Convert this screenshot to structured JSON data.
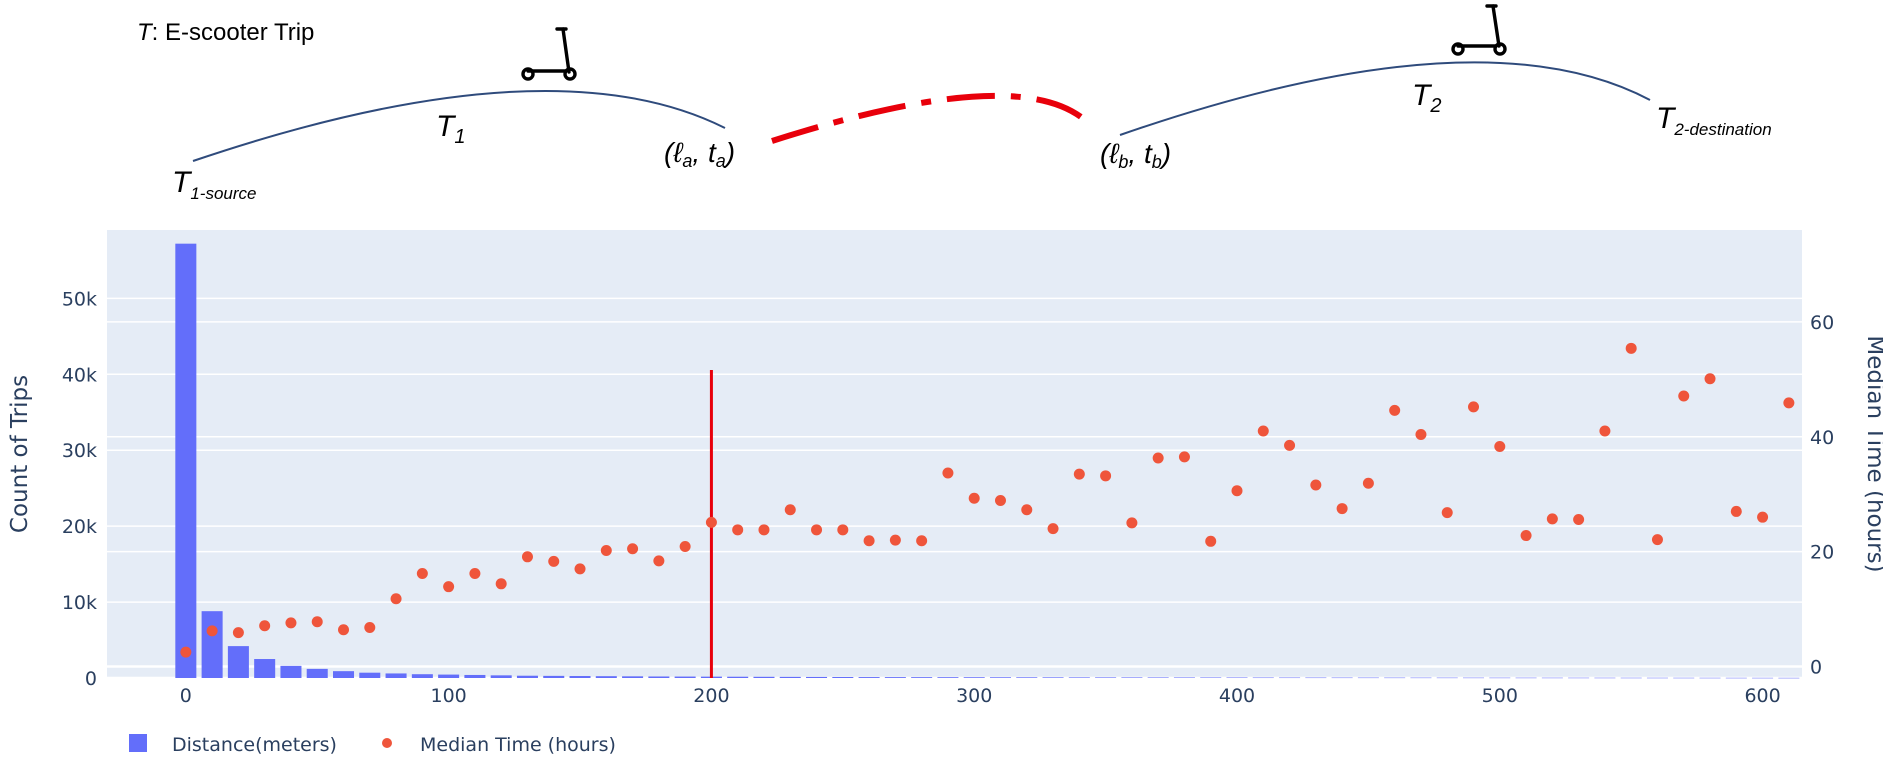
{
  "diagram": {
    "title_var": "T",
    "title_text": ": E-scooter Trip",
    "t1": {
      "main": "T",
      "sub": "1"
    },
    "t1_source": {
      "main": "T",
      "sub": "1-source"
    },
    "t2": {
      "main": "T",
      "sub": "2"
    },
    "t2_dest": {
      "main": "T",
      "sub": "2-destination"
    },
    "point_a": {
      "open": "(",
      "l": "ℓ",
      "l_sub": "a",
      "sep": ", ",
      "t": "t",
      "t_sub": "a",
      "close": ")"
    },
    "point_b": {
      "open": "(",
      "l": "ℓ",
      "l_sub": "b",
      "sep": ", ",
      "t": "t",
      "t_sub": "b",
      "close": ")"
    }
  },
  "colors": {
    "plot_bg": "#e5ecf6",
    "bar": "#636efa",
    "dot": "#ef553b",
    "vline": "#e8000b",
    "dashed": "#e8000b",
    "curve": "#2f4b7c",
    "axis_text": "#2a3f5f"
  },
  "chart_data": {
    "type": "bar+scatter",
    "xlabel": "",
    "ylabel_left": "Count of Trips",
    "ylabel_right": "Median Time (hours)",
    "x_ticks": [
      0,
      100,
      200,
      300,
      400,
      500,
      600
    ],
    "y_left_ticks": [
      0,
      10000,
      20000,
      30000,
      40000,
      50000
    ],
    "y_left_tick_labels": [
      "0",
      "10k",
      "20k",
      "30k",
      "40k",
      "50k"
    ],
    "y_right_ticks": [
      0,
      20,
      40,
      60
    ],
    "y_right_tick_labels": [
      "0",
      "20",
      "40",
      "60"
    ],
    "xlim": [
      -30,
      615
    ],
    "ylim_left": [
      0,
      59000
    ],
    "ylim_right": [
      -2,
      76
    ],
    "vline_x": 200,
    "bars": {
      "name": "Distance(meters)",
      "x": [
        0,
        10,
        20,
        30,
        40,
        50,
        60,
        70,
        80,
        90,
        100,
        110,
        120,
        130,
        140,
        150,
        160,
        170,
        180,
        190,
        200,
        210,
        220,
        230,
        240,
        250,
        260,
        270,
        280,
        290,
        300,
        310,
        320,
        330,
        340,
        350,
        360,
        370,
        380,
        390,
        400,
        410,
        420,
        430,
        440,
        450,
        460,
        470,
        480,
        490,
        500,
        510,
        520,
        530,
        540,
        550,
        560,
        570,
        580,
        590,
        600,
        610
      ],
      "values": [
        57200,
        8800,
        4200,
        2500,
        1600,
        1200,
        900,
        700,
        600,
        500,
        450,
        400,
        350,
        300,
        280,
        260,
        240,
        220,
        200,
        190,
        180,
        170,
        160,
        150,
        140,
        130,
        120,
        115,
        110,
        105,
        100,
        95,
        90,
        85,
        80,
        78,
        75,
        72,
        70,
        68,
        65,
        62,
        60,
        58,
        56,
        54,
        52,
        50,
        48,
        46,
        44,
        42,
        40,
        38,
        36,
        34,
        32,
        30,
        28,
        26,
        24,
        22
      ]
    },
    "scatter": {
      "name": "Median Time (hours)",
      "x": [
        0,
        10,
        20,
        30,
        40,
        50,
        60,
        70,
        80,
        90,
        100,
        110,
        120,
        130,
        140,
        150,
        160,
        170,
        180,
        190,
        200,
        210,
        220,
        230,
        240,
        250,
        260,
        270,
        280,
        290,
        300,
        310,
        320,
        330,
        340,
        350,
        360,
        370,
        380,
        390,
        400,
        410,
        420,
        430,
        440,
        450,
        460,
        470,
        480,
        490,
        500,
        510,
        520,
        530,
        540,
        550,
        560,
        570,
        580,
        590,
        600,
        610
      ],
      "values": [
        2.5,
        6.2,
        5.9,
        7.1,
        7.6,
        7.8,
        6.4,
        6.8,
        11.8,
        16.2,
        13.9,
        16.2,
        14.4,
        19.1,
        18.3,
        17.0,
        20.2,
        20.5,
        18.4,
        20.9,
        25.1,
        23.8,
        23.8,
        27.3,
        23.8,
        23.8,
        21.9,
        22.0,
        21.9,
        33.7,
        29.3,
        28.9,
        27.3,
        24.0,
        33.5,
        33.2,
        25.0,
        36.3,
        36.5,
        21.8,
        30.6,
        41.0,
        38.5,
        31.6,
        27.5,
        31.9,
        44.6,
        40.4,
        26.8,
        45.2,
        38.3,
        22.8,
        25.7,
        25.6,
        41.0,
        55.4,
        22.1,
        47.1,
        50.1,
        27.0,
        26.0,
        45.9
      ]
    },
    "legend": [
      {
        "name": "Distance(meters)",
        "marker": "square"
      },
      {
        "name": "Median Time (hours)",
        "marker": "circle"
      }
    ],
    "legend_placement": "bottom-left",
    "grid": true
  }
}
